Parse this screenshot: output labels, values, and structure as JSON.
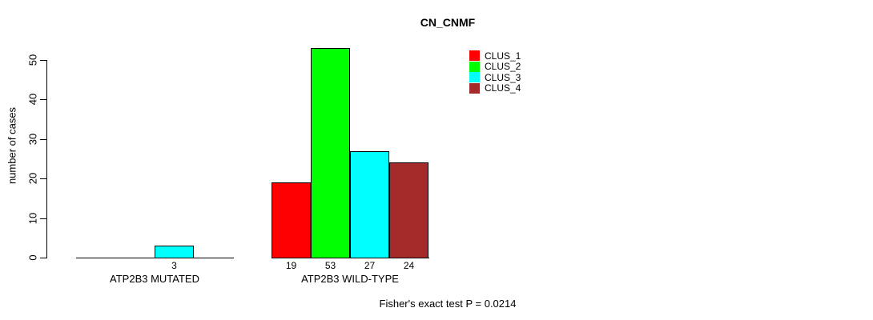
{
  "title": "CN_CNMF",
  "legend": [
    {
      "label": "CLUS_1",
      "color": "#ff0000"
    },
    {
      "label": "CLUS_2",
      "color": "#00ff00"
    },
    {
      "label": "CLUS_3",
      "color": "#00ffff"
    },
    {
      "label": "CLUS_4",
      "color": "#a52a2a"
    }
  ],
  "chart_data": {
    "type": "bar",
    "title": "CN_CNMF",
    "ylabel": "number of cases",
    "xlabel": "",
    "ylim": [
      0,
      53
    ],
    "yticks": [
      0,
      10,
      20,
      30,
      40,
      50
    ],
    "grid": false,
    "legend_position": "top-right",
    "series_names": [
      "CLUS_1",
      "CLUS_2",
      "CLUS_3",
      "CLUS_4"
    ],
    "series_colors": [
      "#ff0000",
      "#00ff00",
      "#00ffff",
      "#a52a2a"
    ],
    "groups": [
      {
        "label": "ATP2B3 MUTATED",
        "values": [
          0,
          0,
          3,
          0
        ],
        "bar_labels": [
          "",
          "",
          "3",
          ""
        ]
      },
      {
        "label": "ATP2B3 WILD-TYPE",
        "values": [
          19,
          53,
          27,
          24
        ],
        "bar_labels": [
          "19",
          "53",
          "27",
          "24"
        ]
      }
    ],
    "annotation": "Fisher's exact test P = 0.0214"
  }
}
